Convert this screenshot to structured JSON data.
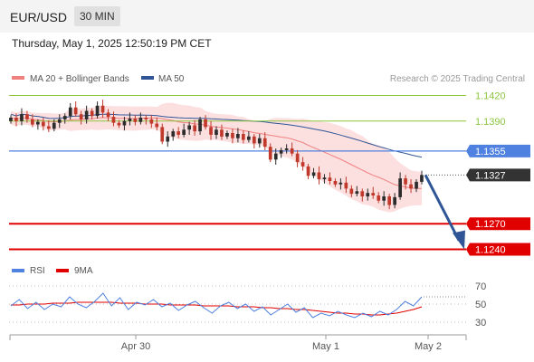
{
  "header": {
    "pair": "EUR/USD",
    "timeframe": "30 MIN"
  },
  "timestamp": "Thursday, May 1, 2025 12:50:19 PM CET",
  "colors": {
    "support": "#e00000",
    "resistance": "#8dc63f",
    "pivot": "#4f81e0",
    "current": "#333333",
    "arrow": "#2f5597",
    "ma50": "#2f5597",
    "bollinger": "#f08080",
    "rsi": "#4f81e0",
    "rsi_ma": "#e00000",
    "up": "#2c2c2c",
    "down": "#c0392b"
  },
  "chart_data": [
    {
      "type": "candlestick",
      "legend": [
        {
          "label": "MA 20 + Bollinger Bands",
          "color": "#f08080"
        },
        {
          "label": "MA 50",
          "color": "#2f5597"
        }
      ],
      "credit": "Research © 2025 Trading Central",
      "ylim": [
        1.123,
        1.143
      ],
      "x_ticks": [
        "Apr 30",
        "May 1",
        "May 2"
      ],
      "levels": [
        {
          "value": 1.142,
          "label": "1.1420",
          "kind": "resistance"
        },
        {
          "value": 1.139,
          "label": "1.1390",
          "kind": "resistance"
        },
        {
          "value": 1.1355,
          "label": "1.1355",
          "kind": "pivot"
        },
        {
          "value": 1.1327,
          "label": "1.1327",
          "kind": "current"
        },
        {
          "value": 1.127,
          "label": "1.1270",
          "kind": "support"
        },
        {
          "value": 1.124,
          "label": "1.1240",
          "kind": "support"
        }
      ],
      "forecast": {
        "from": 1.1327,
        "to": 1.124
      },
      "candle_close_path": [
        1.1394,
        1.139,
        1.1398,
        1.1392,
        1.1386,
        1.1389,
        1.1384,
        1.1381,
        1.1388,
        1.1392,
        1.1396,
        1.1406,
        1.1398,
        1.1392,
        1.1402,
        1.1396,
        1.1408,
        1.14,
        1.1395,
        1.1388,
        1.1385,
        1.139,
        1.1393,
        1.1389,
        1.1394,
        1.1392,
        1.1387,
        1.1383,
        1.1366,
        1.1372,
        1.1378,
        1.1374,
        1.138,
        1.1385,
        1.1378,
        1.1392,
        1.1383,
        1.1374,
        1.138,
        1.1372,
        1.1376,
        1.137,
        1.1375,
        1.1368,
        1.1372,
        1.1364,
        1.137,
        1.136,
        1.1345,
        1.1352,
        1.1356,
        1.1358,
        1.1352,
        1.1342,
        1.1337,
        1.1326,
        1.133,
        1.1322,
        1.1324,
        1.132,
        1.1316,
        1.1318,
        1.1311,
        1.1305,
        1.1308,
        1.1302,
        1.1306,
        1.1303,
        1.1297,
        1.1302,
        1.1292,
        1.1301,
        1.1323,
        1.1316,
        1.1311,
        1.1319,
        1.1327
      ]
    },
    {
      "type": "line",
      "legend": [
        {
          "label": "RSI",
          "color": "#4f81e0"
        },
        {
          "label": "9MA",
          "color": "#e00000"
        }
      ],
      "ylim": [
        20,
        80
      ],
      "y_ticks": [
        70,
        50,
        30
      ],
      "series": [
        {
          "name": "RSI",
          "values": [
            48,
            55,
            45,
            52,
            44,
            50,
            47,
            58,
            50,
            46,
            53,
            62,
            48,
            57,
            44,
            52,
            49,
            55,
            47,
            51,
            43,
            49,
            53,
            46,
            40,
            48,
            52,
            45,
            50,
            42,
            47,
            38,
            44,
            50,
            41,
            46,
            35,
            40,
            37,
            42,
            38,
            35,
            40,
            36,
            42,
            38,
            44,
            53,
            48,
            58
          ]
        },
        {
          "name": "9MA",
          "values": [
            49,
            49,
            50,
            50,
            50,
            51,
            51,
            51,
            52,
            52,
            52,
            52,
            52,
            51,
            51,
            51,
            50,
            50,
            50,
            49,
            49,
            49,
            49,
            48,
            48,
            48,
            48,
            47,
            47,
            47,
            46,
            46,
            45,
            45,
            44,
            44,
            43,
            42,
            41,
            40,
            40,
            39,
            39,
            38,
            38,
            39,
            40,
            42,
            44,
            47
          ]
        }
      ]
    }
  ]
}
